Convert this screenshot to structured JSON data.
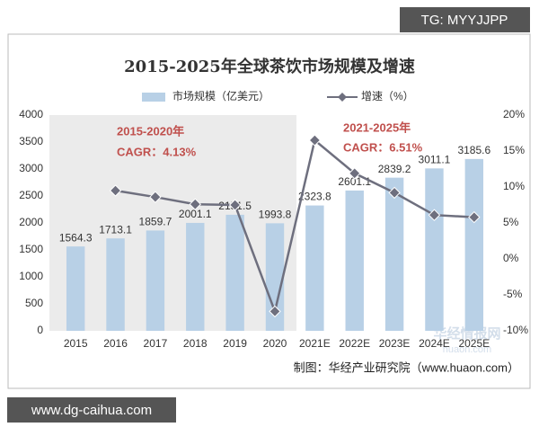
{
  "chart_data": {
    "type": "combo",
    "title": "2015-2025年全球茶饮市场规模及增速",
    "categories": [
      "2015",
      "2016",
      "2017",
      "2018",
      "2019",
      "2020",
      "2021E",
      "2022E",
      "2023E",
      "2024E",
      "2025E"
    ],
    "series": [
      {
        "name": "市场规模（亿美元）",
        "type": "bar",
        "color": "#b8d0e6",
        "axis": "y",
        "values": [
          1564.3,
          1713.1,
          1859.7,
          2001.1,
          2151.5,
          1993.8,
          2323.8,
          2601.1,
          2839.2,
          3011.1,
          3185.6
        ]
      },
      {
        "name": "增速（%）",
        "type": "line",
        "color": "#6e6f7e",
        "axis": "y2",
        "values": [
          null,
          9.5,
          8.6,
          7.6,
          7.5,
          -7.3,
          16.5,
          11.9,
          9.2,
          6.1,
          5.8
        ]
      }
    ],
    "ylim": [
      0,
      4000
    ],
    "yticks": [
      0,
      500,
      1000,
      1500,
      2000,
      2500,
      3000,
      3500,
      4000
    ],
    "y2lim": [
      -10,
      20
    ],
    "y2ticks": [
      {
        "value": -10,
        "label": "-10%"
      },
      {
        "value": -5,
        "label": "-5%"
      },
      {
        "value": 0,
        "label": "0%"
      },
      {
        "value": 5,
        "label": "5%"
      },
      {
        "value": 10,
        "label": "10%"
      },
      {
        "value": 15,
        "label": "15%"
      },
      {
        "value": 20,
        "label": "20%"
      }
    ],
    "annotations": [
      "2015-2020年",
      "CAGR：4.13%",
      "2021-2025年",
      "CAGR：6.51%"
    ],
    "source": "制图：华经产业研究院（www.huaon.com）"
  },
  "watermarks": [
    "TG: MYYJJPP",
    "www.dg-caihua.com",
    "华经情报网",
    "huaon.com"
  ]
}
